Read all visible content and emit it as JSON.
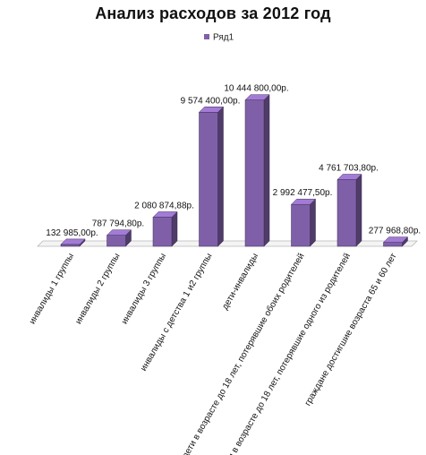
{
  "chart_data": {
    "type": "bar",
    "title": "Анализ расходов за 2012 год",
    "xlabel": "",
    "ylabel": "",
    "legend": "top",
    "grid": false,
    "bar_style": "3d",
    "categories": [
      "инвалиды 1 группы",
      "инвалиды 2 группы",
      "инвалиды 3 группы",
      "инвалиды с детства 1 и2 группы",
      "дети-инвалиды",
      "дети в возрасте до 18 лет, потерявшие обоих родителей",
      "дети в возрасте до 18 лет, потерявшие одного из родителей",
      "граждане достигшие возраста 65 и 60 лет"
    ],
    "series": [
      {
        "name": "Ряд1",
        "color": "#7f60a8",
        "values": [
          132985.0,
          787794.8,
          2080874.88,
          9574400.0,
          10444800.0,
          2992477.5,
          4761703.8,
          277968.8
        ],
        "labels": [
          "132 985,00р.",
          "787 794,80р.",
          "2 080 874,88р.",
          "9 574 400,00р.",
          "10 444 800,00р.",
          "2 992 477,50р.",
          "4 761 703,80р.",
          "277 968,80р."
        ]
      }
    ],
    "ylim": [
      0,
      11000000
    ]
  }
}
